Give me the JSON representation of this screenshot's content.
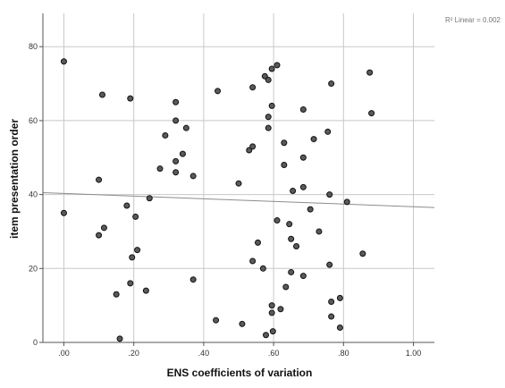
{
  "chart_data": {
    "type": "scatter",
    "title": "",
    "xlabel": "ENS coefficients of variation",
    "ylabel": "item presentation order",
    "xlim": [
      -0.06,
      1.06
    ],
    "ylim": [
      0,
      89
    ],
    "x_ticks": [
      0.0,
      0.2,
      0.4,
      0.6,
      0.8,
      1.0
    ],
    "x_tick_labels": [
      ".00",
      ".20",
      ".40",
      ".60",
      ".80",
      "1.00"
    ],
    "y_ticks": [
      0,
      20,
      40,
      60,
      80
    ],
    "y_tick_labels": [
      "0",
      "20",
      "40",
      "60",
      "80"
    ],
    "grid": true,
    "fit_line": {
      "label": "R² Linear = 0.002",
      "points": [
        [
          -0.06,
          40.5
        ],
        [
          1.06,
          36.5
        ]
      ]
    },
    "points": [
      [
        0.0,
        76
      ],
      [
        0.0,
        35
      ],
      [
        0.1,
        44
      ],
      [
        0.1,
        29
      ],
      [
        0.11,
        67
      ],
      [
        0.115,
        31
      ],
      [
        0.15,
        13
      ],
      [
        0.16,
        1
      ],
      [
        0.18,
        37
      ],
      [
        0.19,
        66
      ],
      [
        0.19,
        16
      ],
      [
        0.195,
        23
      ],
      [
        0.205,
        34
      ],
      [
        0.21,
        25
      ],
      [
        0.235,
        14
      ],
      [
        0.245,
        39
      ],
      [
        0.275,
        47
      ],
      [
        0.29,
        56
      ],
      [
        0.32,
        65
      ],
      [
        0.32,
        60
      ],
      [
        0.32,
        49
      ],
      [
        0.32,
        46
      ],
      [
        0.34,
        51
      ],
      [
        0.35,
        58
      ],
      [
        0.37,
        45
      ],
      [
        0.37,
        17
      ],
      [
        0.435,
        6
      ],
      [
        0.44,
        68
      ],
      [
        0.5,
        43
      ],
      [
        0.51,
        5
      ],
      [
        0.53,
        52
      ],
      [
        0.54,
        69
      ],
      [
        0.54,
        53
      ],
      [
        0.54,
        22
      ],
      [
        0.555,
        27
      ],
      [
        0.57,
        20
      ],
      [
        0.575,
        72
      ],
      [
        0.578,
        2
      ],
      [
        0.585,
        71
      ],
      [
        0.585,
        61
      ],
      [
        0.585,
        58
      ],
      [
        0.595,
        74
      ],
      [
        0.595,
        64
      ],
      [
        0.595,
        10
      ],
      [
        0.595,
        8
      ],
      [
        0.598,
        3
      ],
      [
        0.61,
        75
      ],
      [
        0.61,
        33
      ],
      [
        0.62,
        9
      ],
      [
        0.63,
        54
      ],
      [
        0.63,
        48
      ],
      [
        0.635,
        15
      ],
      [
        0.645,
        32
      ],
      [
        0.65,
        28
      ],
      [
        0.65,
        19
      ],
      [
        0.655,
        41
      ],
      [
        0.665,
        26
      ],
      [
        0.685,
        63
      ],
      [
        0.685,
        50
      ],
      [
        0.685,
        42
      ],
      [
        0.685,
        18
      ],
      [
        0.705,
        36
      ],
      [
        0.715,
        55
      ],
      [
        0.73,
        30
      ],
      [
        0.755,
        57
      ],
      [
        0.76,
        40
      ],
      [
        0.76,
        21
      ],
      [
        0.765,
        70
      ],
      [
        0.765,
        11
      ],
      [
        0.765,
        7
      ],
      [
        0.79,
        12
      ],
      [
        0.79,
        4
      ],
      [
        0.81,
        38
      ],
      [
        0.855,
        24
      ],
      [
        0.875,
        73
      ],
      [
        0.88,
        62
      ]
    ]
  }
}
